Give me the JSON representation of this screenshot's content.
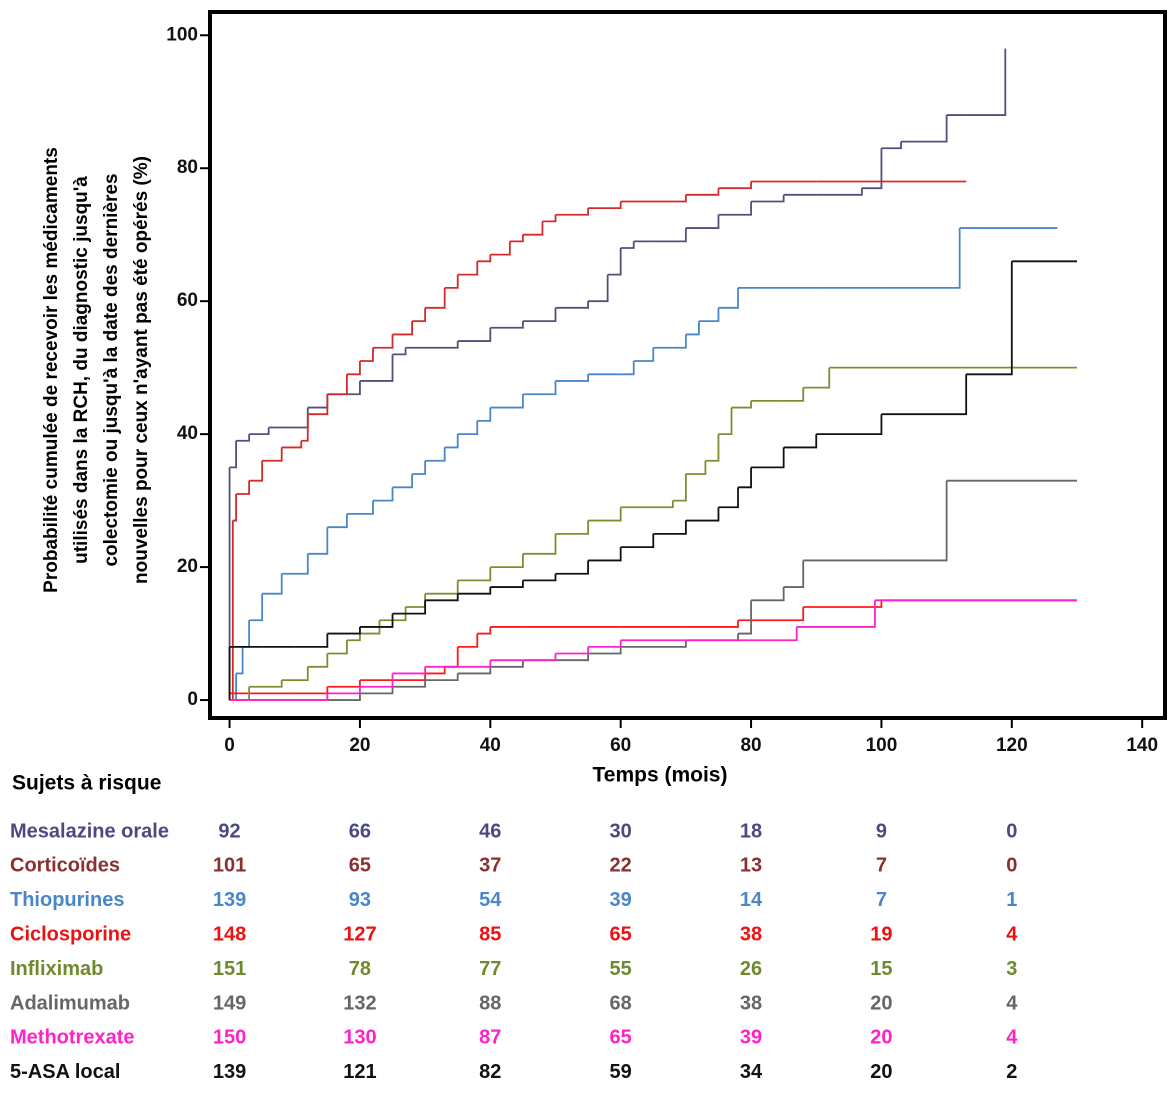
{
  "chart_data": {
    "type": "step",
    "y_label": [
      "Probabilité cumulée de recevoir les médicaments",
      "utilisés dans la RCH, du diagnostic jusqu'à",
      "colectomie ou jusqu'à la date des dernières",
      "nouvelles pour ceux n'ayant pas été opérés (%)"
    ],
    "x_label": "Temps (mois)",
    "xlim": [
      -3,
      143.5
    ],
    "ylim": [
      -2.7,
      103.5
    ],
    "xticks": [
      0,
      20,
      40,
      60,
      80,
      100,
      120,
      140
    ],
    "yticks": [
      0,
      20,
      40,
      60,
      80,
      100
    ],
    "risk_title": "Sujets à risque",
    "series": [
      {
        "name": "Mesalazine orale",
        "color": "#50507a",
        "label_color": "#4a4a80",
        "x": [
          0,
          0,
          1,
          3,
          6,
          11,
          12,
          15,
          20,
          25,
          27,
          35,
          40,
          45,
          50,
          55,
          58,
          60,
          62,
          65,
          70,
          75,
          80,
          85,
          90,
          97,
          100,
          103,
          110,
          113,
          119
        ],
        "y": [
          0,
          35,
          39,
          40,
          41,
          41,
          44,
          46,
          48,
          52,
          53,
          54,
          56,
          57,
          59,
          60,
          64,
          68,
          69,
          69,
          71,
          73,
          75,
          76,
          76,
          77,
          83,
          84,
          88,
          88,
          98
        ],
        "at_risk": [
          92,
          66,
          46,
          30,
          18,
          9,
          0
        ]
      },
      {
        "name": "Corticoïdes",
        "color": "#d42a2a",
        "label_color": "#8b3030",
        "x": [
          0,
          0.5,
          1,
          3,
          5,
          8,
          11,
          12,
          15,
          18,
          20,
          22,
          25,
          28,
          30,
          33,
          35,
          38,
          40,
          43,
          45,
          48,
          50,
          55,
          60,
          70,
          75,
          80,
          90,
          100,
          113
        ],
        "y": [
          0,
          27,
          31,
          33,
          36,
          38,
          39,
          43,
          46,
          49,
          51,
          53,
          55,
          57,
          59,
          62,
          64,
          66,
          67,
          69,
          70,
          72,
          73,
          74,
          75,
          76,
          77,
          78,
          78,
          78,
          78
        ],
        "at_risk": [
          101,
          65,
          37,
          22,
          13,
          7,
          0
        ]
      },
      {
        "name": "Thiopurines",
        "color": "#4a86c8",
        "label_color": "#4a86c8",
        "x": [
          0,
          1,
          2,
          3,
          5,
          8,
          12,
          15,
          18,
          22,
          25,
          28,
          30,
          33,
          35,
          38,
          40,
          45,
          50,
          55,
          60,
          62,
          65,
          70,
          72,
          75,
          78,
          80,
          90,
          100,
          112,
          127
        ],
        "y": [
          0,
          4,
          8,
          12,
          16,
          19,
          22,
          26,
          28,
          30,
          32,
          34,
          36,
          38,
          40,
          42,
          44,
          46,
          48,
          49,
          49,
          51,
          53,
          55,
          57,
          59,
          62,
          62,
          62,
          62,
          71,
          71
        ],
        "at_risk": [
          139,
          93,
          54,
          39,
          14,
          7,
          1
        ]
      },
      {
        "name": "Ciclosporine",
        "color": "#ff1a1a",
        "label_color": "#ee1111",
        "x": [
          0,
          3,
          10,
          15,
          20,
          25,
          30,
          33,
          35,
          38,
          40,
          45,
          50,
          60,
          70,
          78,
          88,
          100,
          130
        ],
        "y": [
          1,
          1,
          1,
          2,
          3,
          3,
          4,
          5,
          8,
          10,
          11,
          11,
          11,
          11,
          11,
          12,
          14,
          15,
          15
        ],
        "at_risk": [
          148,
          127,
          85,
          65,
          38,
          19,
          4
        ]
      },
      {
        "name": "Infliximab",
        "color": "#7a9030",
        "label_color": "#6e8a2e",
        "x": [
          0,
          3,
          8,
          12,
          15,
          18,
          20,
          23,
          27,
          30,
          35,
          40,
          45,
          50,
          55,
          60,
          65,
          68,
          70,
          73,
          75,
          77,
          80,
          85,
          88,
          92,
          100,
          130
        ],
        "y": [
          0,
          2,
          3,
          5,
          7,
          9,
          10,
          12,
          14,
          16,
          18,
          20,
          22,
          25,
          27,
          29,
          29,
          30,
          34,
          36,
          40,
          44,
          45,
          45,
          47,
          50,
          50,
          50
        ],
        "at_risk": [
          151,
          78,
          77,
          55,
          26,
          15,
          3
        ]
      },
      {
        "name": "Adalimumab",
        "color": "#666666",
        "label_color": "#666666",
        "x": [
          0,
          10,
          15,
          20,
          25,
          30,
          35,
          40,
          45,
          50,
          55,
          60,
          70,
          78,
          80,
          85,
          88,
          100,
          108,
          110,
          130
        ],
        "y": [
          0,
          0,
          0,
          1,
          2,
          3,
          4,
          5,
          6,
          6,
          7,
          8,
          9,
          10,
          15,
          17,
          21,
          21,
          21,
          33,
          33
        ],
        "at_risk": [
          149,
          132,
          88,
          68,
          38,
          20,
          4
        ]
      },
      {
        "name": "Methotrexate",
        "color": "#ff22c8",
        "label_color": "#ff22c8",
        "x": [
          0,
          10,
          15,
          20,
          25,
          30,
          35,
          40,
          45,
          50,
          55,
          60,
          70,
          77,
          87,
          99,
          130
        ],
        "y": [
          0,
          0,
          1,
          2,
          4,
          5,
          5,
          6,
          6,
          7,
          8,
          9,
          9,
          9,
          11,
          15,
          15
        ],
        "at_risk": [
          150,
          130,
          87,
          65,
          39,
          20,
          4
        ]
      },
      {
        "name": "5-ASA local",
        "color": "#111111",
        "label_color": "#111111",
        "x": [
          0,
          0,
          5,
          10,
          15,
          20,
          25,
          30,
          35,
          40,
          45,
          50,
          55,
          60,
          65,
          70,
          75,
          78,
          80,
          85,
          90,
          100,
          105,
          113,
          120,
          130
        ],
        "y": [
          0,
          8,
          8,
          8,
          10,
          11,
          13,
          15,
          16,
          17,
          18,
          19,
          21,
          23,
          25,
          27,
          29,
          32,
          35,
          38,
          40,
          43,
          43,
          49,
          66,
          66
        ],
        "at_risk": [
          139,
          121,
          82,
          59,
          34,
          20,
          2
        ]
      }
    ]
  }
}
